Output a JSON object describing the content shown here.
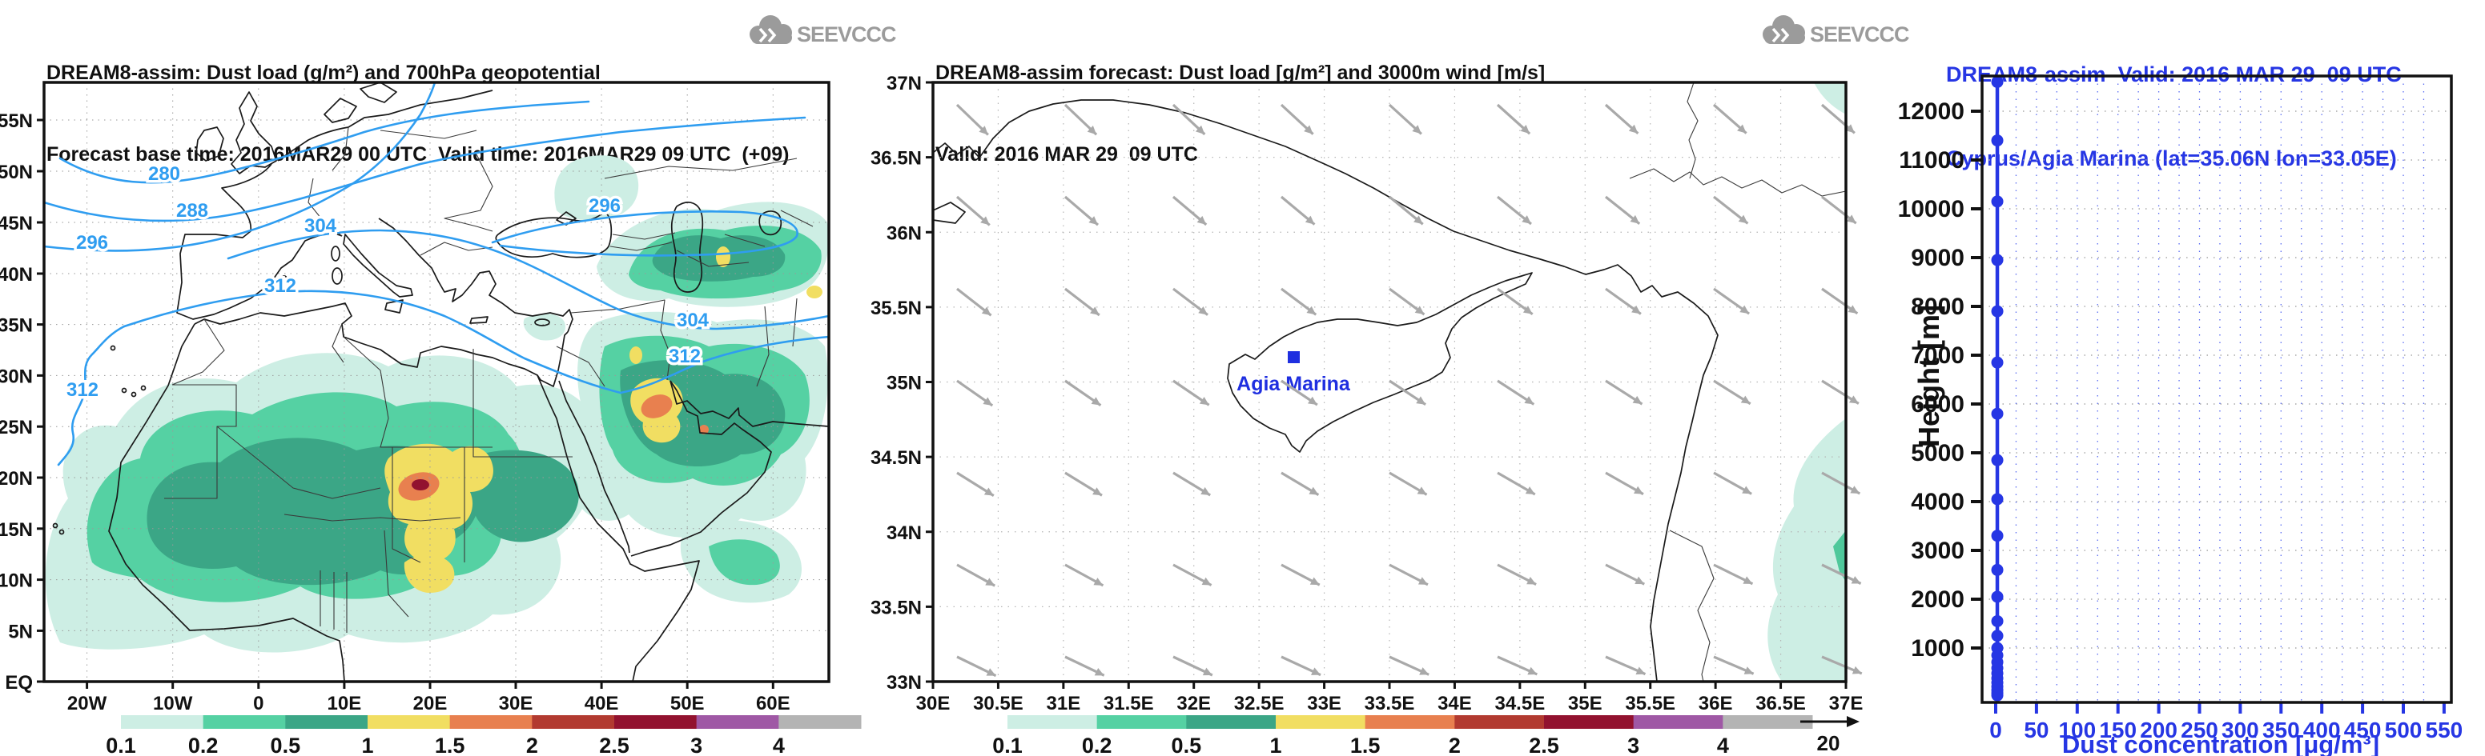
{
  "colors": {
    "contour_blue": "#2f9df0",
    "profile_blue": "#2636e4",
    "logo_gray": "#9b9b9b",
    "wind_arrow_gray": "#a9a9a9",
    "dust_level_colors": [
      "#cdeee4",
      "#55d1a3",
      "#3ba686",
      "#f1de62",
      "#e8804f",
      "#b23a30",
      "#92122f",
      "#9f58a5",
      "#b4b4b4"
    ]
  },
  "colorbar": {
    "labels": [
      "0.1",
      "0.2",
      "0.5",
      "1",
      "1.5",
      "2",
      "2.5",
      "3",
      "4"
    ],
    "colors": [
      "#cdeee4",
      "#55d1a3",
      "#3ba686",
      "#f1de62",
      "#e8804f",
      "#b23a30",
      "#92122f",
      "#9f58a5",
      "#b4b4b4"
    ]
  },
  "panels": {
    "left": {
      "title": "DREAM8-assim: Dust load (g/m²) and 700hPa geopotential",
      "subtitle": "Forecast base time: 2016MAR29 00 UTC  Valid time: 2016MAR29 09 UTC  (+09)",
      "logo": "SEEVCCC",
      "x_ticks": [
        "20W",
        "10W",
        "0",
        "10E",
        "20E",
        "30E",
        "40E",
        "50E",
        "60E"
      ],
      "y_ticks": [
        "55N",
        "50N",
        "45N",
        "40N",
        "35N",
        "30N",
        "25N",
        "20N",
        "15N",
        "10N",
        "5N",
        "EQ"
      ],
      "contour_labels": [
        "280",
        "288",
        "296",
        "296",
        "304",
        "304",
        "312",
        "312",
        "312"
      ]
    },
    "middle": {
      "title": "DREAM8-assim forecast: Dust load [g/m²] and 3000m wind [m/s]",
      "subtitle": "Valid: 2016 MAR 29  09 UTC",
      "logo": "SEEVCCC",
      "x_ticks": [
        "30E",
        "30.5E",
        "31E",
        "31.5E",
        "32E",
        "32.5E",
        "33E",
        "33.5E",
        "34E",
        "34.5E",
        "35E",
        "35.5E",
        "36E",
        "36.5E",
        "37E"
      ],
      "y_ticks": [
        "37N",
        "36.5N",
        "36N",
        "35.5N",
        "35N",
        "34.5N",
        "34N",
        "33.5N",
        "33N"
      ],
      "station_label": "Agia Marina",
      "wind_ref_label": "20"
    },
    "right": {
      "title": "DREAM8-assim  Valid: 2016 MAR 29  09 UTC",
      "subtitle": "Cyprus/Agia Marina (lat=35.06N lon=33.05E)",
      "ylabel": "Height [m]",
      "xlabel": "Dust concentration [μg/m³]",
      "x_ticks": [
        "0",
        "50",
        "100",
        "150",
        "200",
        "250",
        "300",
        "350",
        "400",
        "450",
        "500",
        "550"
      ],
      "y_ticks": [
        "12000",
        "11000",
        "10000",
        "9000",
        "8000",
        "7000",
        "6000",
        "5000",
        "4000",
        "3000",
        "2000",
        "1000"
      ]
    }
  },
  "chart_data": [
    {
      "type": "heatmap",
      "subtype": "dust-load-contour-map",
      "title": "DREAM8-assim: Dust load (g/m²) and 700hPa geopotential",
      "forecast_base_time": "2016MAR29 00 UTC",
      "valid_time": "2016MAR29 09 UTC (+09)",
      "x_tick_labels": [
        "20W",
        "10W",
        "0",
        "10E",
        "20E",
        "30E",
        "40E",
        "50E",
        "60E"
      ],
      "y_tick_labels": [
        "EQ",
        "5N",
        "10N",
        "15N",
        "20N",
        "25N",
        "30N",
        "35N",
        "40N",
        "45N",
        "50N",
        "55N"
      ],
      "dust_load_levels_g_m2": [
        0.1,
        0.2,
        0.5,
        1,
        1.5,
        2,
        2.5,
        3,
        4
      ],
      "geopotential_contour_labels": [
        280,
        288,
        296,
        304,
        312
      ],
      "legend_position": "bottom",
      "grid": "dotted",
      "notes": "Dust plumes over West Africa/Sahel with maximum >2.5 g/m2 near Chad, secondary maximum ~2 g/m2 near Persian Gulf, lighter plumes over Central Asia and Horn of Africa"
    },
    {
      "type": "heatmap",
      "subtype": "dust-load-wind-map",
      "title": "DREAM8-assim forecast: Dust load [g/m²] and 3000m wind [m/s]",
      "valid_time": "2016 MAR 29 09 UTC",
      "lon_range": [
        30,
        37
      ],
      "lat_range": [
        33,
        37
      ],
      "wind_reference_ms": 20,
      "wind_pattern": "uniform northwest-to-southeast arrows",
      "station": {
        "name": "Agia Marina",
        "lat": "35.06N",
        "lon": "33.05E"
      },
      "dust_load_levels_g_m2": [
        0.1,
        0.2,
        0.5,
        1,
        1.5,
        2,
        2.5,
        3,
        4
      ],
      "grid": "dotted",
      "notes": "Dust load near zero over Cyprus; faint 0.1-0.2 g/m2 patch at southeast corner near 37E/33.3N"
    },
    {
      "type": "line",
      "title": "DREAM8-assim Valid: 2016 MAR 29 09 UTC",
      "subtitle": "Cyprus/Agia Marina (lat=35.06N lon=33.05E)",
      "xlabel": "Dust concentration [μg/m³]",
      "ylabel": "Height [m]",
      "xlim": [
        0,
        550
      ],
      "ylim": [
        0,
        12900
      ],
      "grid": "dotted",
      "series": [
        {
          "name": "dust concentration vertical profile",
          "orientation": "x=concentration, y=height",
          "points": [
            [
              2,
              30
            ],
            [
              2,
              80
            ],
            [
              2,
              140
            ],
            [
              2,
              210
            ],
            [
              2,
              290
            ],
            [
              2,
              380
            ],
            [
              2,
              480
            ],
            [
              2,
              590
            ],
            [
              2,
              710
            ],
            [
              2,
              850
            ],
            [
              2,
              1000
            ],
            [
              2,
              1250
            ],
            [
              2,
              1550
            ],
            [
              2,
              2050
            ],
            [
              2,
              2600
            ],
            [
              2,
              3300
            ],
            [
              2,
              4050
            ],
            [
              2,
              4850
            ],
            [
              2,
              5800
            ],
            [
              2,
              6850
            ],
            [
              2,
              7900
            ],
            [
              2,
              8950
            ],
            [
              2,
              10150
            ],
            [
              2,
              11400
            ],
            [
              2,
              12600
            ]
          ]
        }
      ]
    }
  ]
}
